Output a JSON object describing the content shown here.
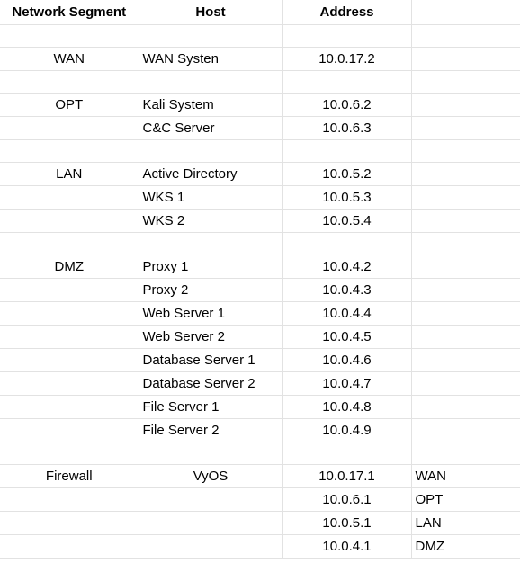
{
  "headers": {
    "segment": "Network Segment",
    "host": "Host",
    "address": "Address",
    "extra": ""
  },
  "rows": [
    {
      "segment": "",
      "host": "",
      "address": "",
      "extra": ""
    },
    {
      "segment": "WAN",
      "host": "WAN Systen",
      "address": "10.0.17.2",
      "extra": ""
    },
    {
      "segment": "",
      "host": "",
      "address": "",
      "extra": ""
    },
    {
      "segment": "OPT",
      "host": "Kali System",
      "address": "10.0.6.2",
      "extra": ""
    },
    {
      "segment": "",
      "host": "C&C Server",
      "address": "10.0.6.3",
      "extra": ""
    },
    {
      "segment": "",
      "host": "",
      "address": "",
      "extra": ""
    },
    {
      "segment": "LAN",
      "host": "Active Directory",
      "address": "10.0.5.2",
      "extra": ""
    },
    {
      "segment": "",
      "host": "WKS 1",
      "address": "10.0.5.3",
      "extra": ""
    },
    {
      "segment": "",
      "host": "WKS 2",
      "address": "10.0.5.4",
      "extra": ""
    },
    {
      "segment": "",
      "host": "",
      "address": "",
      "extra": ""
    },
    {
      "segment": "DMZ",
      "host": "Proxy 1",
      "address": "10.0.4.2",
      "extra": ""
    },
    {
      "segment": "",
      "host": "Proxy 2",
      "address": "10.0.4.3",
      "extra": ""
    },
    {
      "segment": "",
      "host": "Web Server 1",
      "address": "10.0.4.4",
      "extra": ""
    },
    {
      "segment": "",
      "host": "Web Server 2",
      "address": "10.0.4.5",
      "extra": ""
    },
    {
      "segment": "",
      "host": "Database Server 1",
      "address": "10.0.4.6",
      "extra": ""
    },
    {
      "segment": "",
      "host": "Database Server 2",
      "address": "10.0.4.7",
      "extra": ""
    },
    {
      "segment": "",
      "host": "File Server 1",
      "address": "10.0.4.8",
      "extra": ""
    },
    {
      "segment": "",
      "host": "File Server 2",
      "address": "10.0.4.9",
      "extra": ""
    },
    {
      "segment": "",
      "host": "",
      "address": "",
      "extra": ""
    },
    {
      "segment": "Firewall",
      "host": "VyOS",
      "host_centered": true,
      "address": "10.0.17.1",
      "extra": "WAN"
    },
    {
      "segment": "",
      "host": "",
      "address": "10.0.6.1",
      "extra": "OPT"
    },
    {
      "segment": "",
      "host": "",
      "address": "10.0.5.1",
      "extra": "LAN"
    },
    {
      "segment": "",
      "host": "",
      "address": "10.0.4.1",
      "extra": "DMZ"
    }
  ],
  "colors": {
    "gridline": "#e2e2e2",
    "text": "#000000",
    "background": "#ffffff"
  }
}
